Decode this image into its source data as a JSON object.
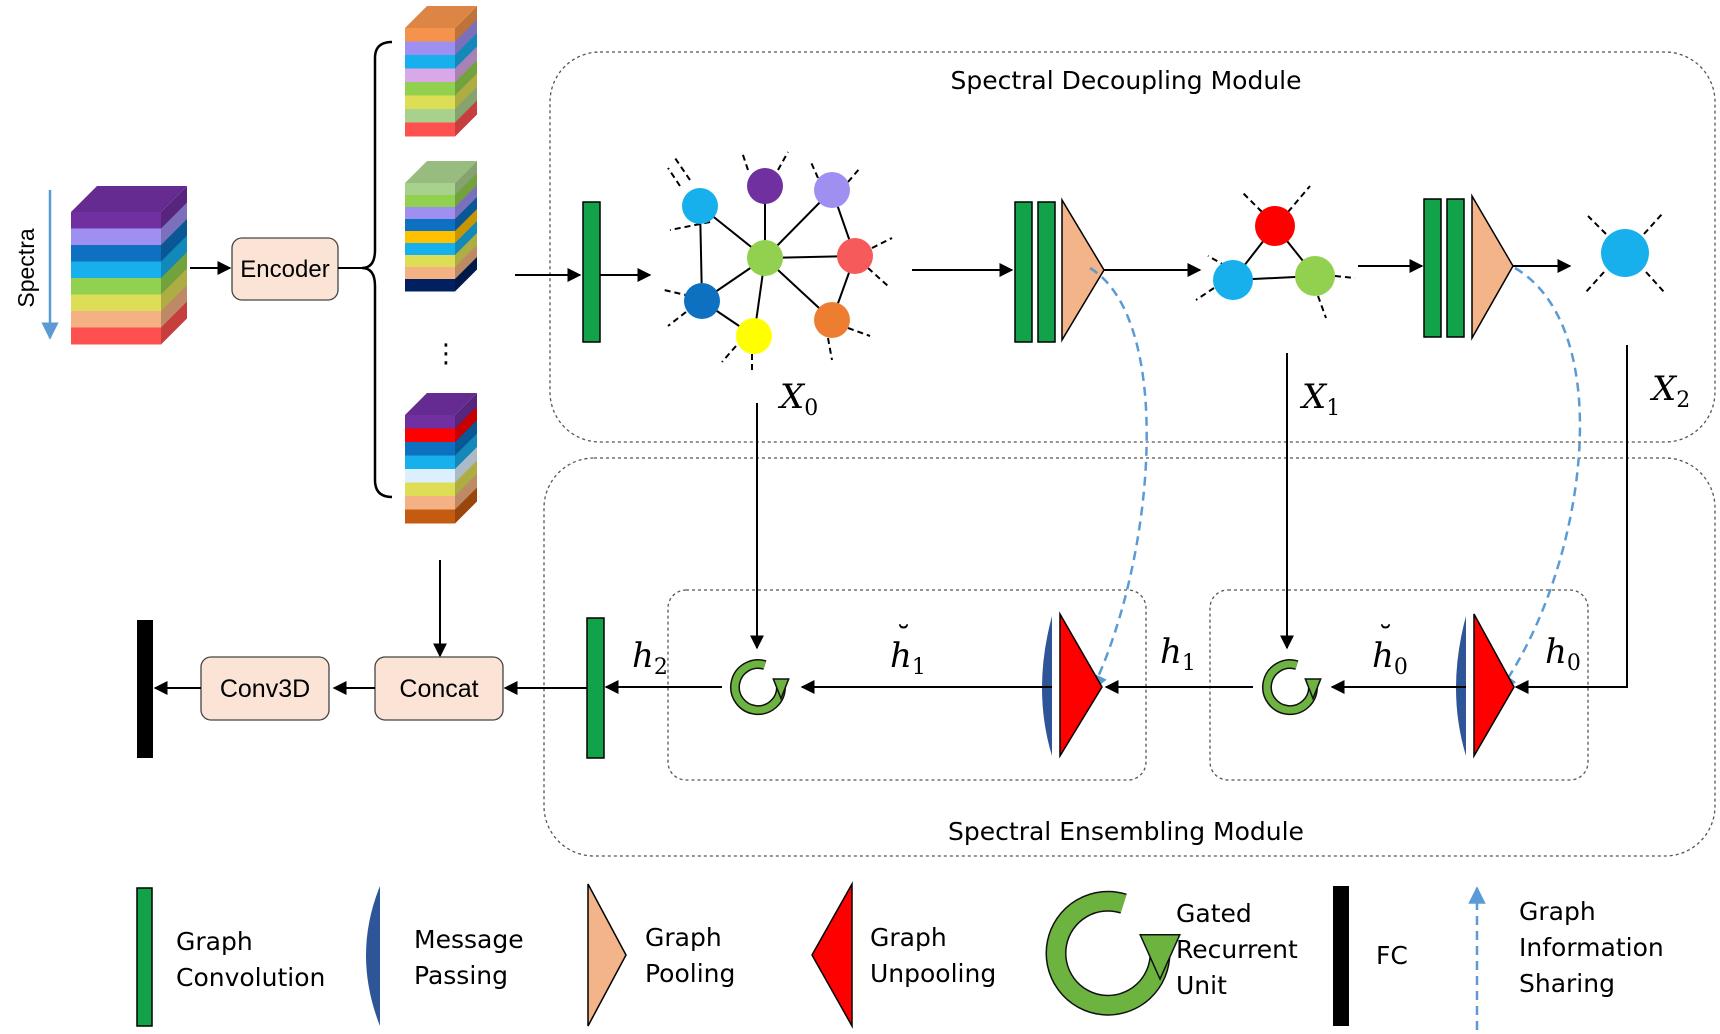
{
  "input": {
    "spectra_label": "Spectra",
    "encoder_label": "Encoder",
    "ellipsis": "⋮"
  },
  "modules": {
    "decoupling_title": "Spectral Decoupling Module",
    "ensembling_title": "Spectral Ensembling Module"
  },
  "math": {
    "x0": "X",
    "x0_sub": "0",
    "x1": "X",
    "x1_sub": "1",
    "x2": "X",
    "x2_sub": "2",
    "h0": "h",
    "h0_sub": "0",
    "h1": "h",
    "h1_sub": "1",
    "h2": "h",
    "h2_sub": "2",
    "h0b": "h",
    "h0b_sub": "0",
    "h0b_accent": "˘",
    "h1b": "h",
    "h1b_sub": "1",
    "h1b_accent": "˘"
  },
  "blocks": {
    "concat_label": "Concat",
    "conv3d_label": "Conv3D"
  },
  "legend": {
    "graph_convolution": [
      "Graph",
      "Convolution"
    ],
    "message_passing": [
      "Message",
      "Passing"
    ],
    "graph_pooling": [
      "Graph",
      "Pooling"
    ],
    "graph_unpooling": [
      "Graph",
      "Unpooling"
    ],
    "gru": [
      "Gated",
      "Recurrent",
      "Unit"
    ],
    "fc": [
      "FC"
    ],
    "info_sharing": [
      "Graph",
      "Information",
      "Sharing"
    ]
  },
  "colors": {
    "green": "#12a34a",
    "blue": "#2e5597",
    "peach": "#f3b48a",
    "red": "#ff0000",
    "gru_green": "#6db33f",
    "block_fill": "#fbe3d6",
    "dashed_blue": "#5b9bd5",
    "node_colors": {
      "n_sky": "#17b0ec",
      "n_purple": "#7030a0",
      "n_lavender": "#9e8ff0",
      "n_green": "#92d050",
      "n_red": "#f65a5a",
      "n_blue": "#0d70c0",
      "n_yellow": "#ffff00",
      "n_orange": "#ed7d31",
      "n_bright_red": "#ff0000"
    },
    "cube_layers_input": [
      "#7030a0",
      "#9e8ff0",
      "#0d70c0",
      "#17b0ec",
      "#92d050",
      "#dede56",
      "#f4b183",
      "#ff5050"
    ],
    "cube_layers_a": [
      "#f4944c",
      "#9e8ff0",
      "#17b0ec",
      "#d9a8e8",
      "#92d050",
      "#dede56",
      "#a9d18e",
      "#ff5050"
    ],
    "cube_layers_b": [
      "#a9d18e",
      "#92d050",
      "#9e8ff0",
      "#0d70c0",
      "#ffc000",
      "#17b0ec",
      "#dede56",
      "#f4b183",
      "#002060"
    ],
    "cube_layers_c": [
      "#7030a0",
      "#ff0000",
      "#0d70c0",
      "#17b0ec",
      "#ddeeff",
      "#dede56",
      "#f4b183",
      "#c55a11"
    ]
  }
}
